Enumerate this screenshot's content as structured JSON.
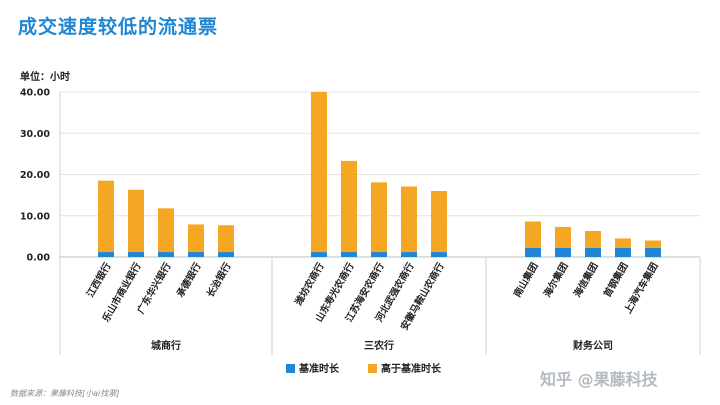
{
  "header": {
    "title": "成交速度较低的流通票",
    "unit_label": "单位：小时"
  },
  "chart_data": {
    "type": "bar",
    "stacked": true,
    "ylim": [
      0,
      40
    ],
    "yticks": [
      "0.00",
      "10.00",
      "20.00",
      "30.00",
      "40.00"
    ],
    "grid": true,
    "legend_position": "bottom",
    "categories": [
      "江西银行",
      "乐山市商业银行",
      "广东华兴银行",
      "承德银行",
      "长治银行",
      "潍坊农商行",
      "山东寿光农商行",
      "江苏海安农商行",
      "河北武强农商行",
      "安徽马鞍山农商行",
      "南山集团",
      "海尔集团",
      "海信集团",
      "首钢集团",
      "上海汽车集团"
    ],
    "groups": [
      {
        "name": "城商行",
        "start": 0,
        "count": 5
      },
      {
        "name": "三农行",
        "start": 5,
        "count": 5
      },
      {
        "name": "财务公司",
        "start": 10,
        "count": 5
      }
    ],
    "series": [
      {
        "name": "基准时长",
        "color": "#1f86d6",
        "values": [
          1.2,
          1.2,
          1.2,
          1.2,
          1.2,
          1.2,
          1.2,
          1.2,
          1.2,
          1.2,
          2.2,
          2.2,
          2.2,
          2.2,
          2.2
        ]
      },
      {
        "name": "高于基准时长",
        "color": "#f5a623",
        "values": [
          17.3,
          15.1,
          10.6,
          6.7,
          6.5,
          38.8,
          22.1,
          16.9,
          15.9,
          14.8,
          6.4,
          5.1,
          4.1,
          2.3,
          1.8
        ]
      }
    ]
  },
  "footer": {
    "source": "数据来源：果藤科技[小ai找票]",
    "watermark": "知乎 @果藤科技"
  }
}
